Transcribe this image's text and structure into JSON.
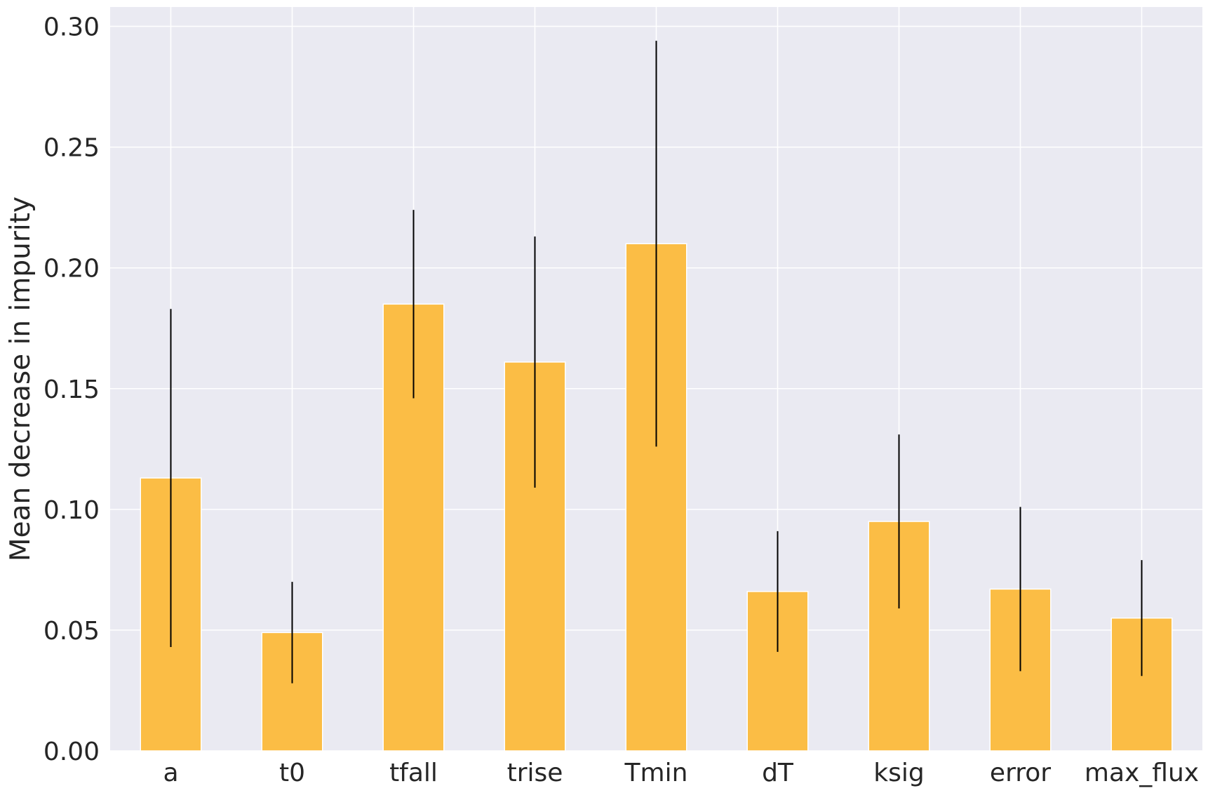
{
  "chart_data": {
    "type": "bar",
    "title": "",
    "xlabel": "",
    "ylabel": "Mean decrease in impurity",
    "categories": [
      "a",
      "t0",
      "tfall",
      "trise",
      "Tmin",
      "dT",
      "ksig",
      "error",
      "max_flux"
    ],
    "values": [
      0.113,
      0.049,
      0.185,
      0.161,
      0.21,
      0.066,
      0.095,
      0.067,
      0.055
    ],
    "error": [
      0.07,
      0.021,
      0.039,
      0.052,
      0.084,
      0.025,
      0.036,
      0.034,
      0.024
    ],
    "ylim": [
      0,
      0.308
    ],
    "yticks": [
      "0.00",
      "0.05",
      "0.10",
      "0.15",
      "0.20",
      "0.25",
      "0.30"
    ],
    "grid": true,
    "colors": {
      "bar": "#fbbd45",
      "bar_edge": "#ffffff",
      "error_bar": "#000000",
      "background": "#eaeaf2",
      "grid": "#ffffff",
      "text": "#262626"
    }
  }
}
